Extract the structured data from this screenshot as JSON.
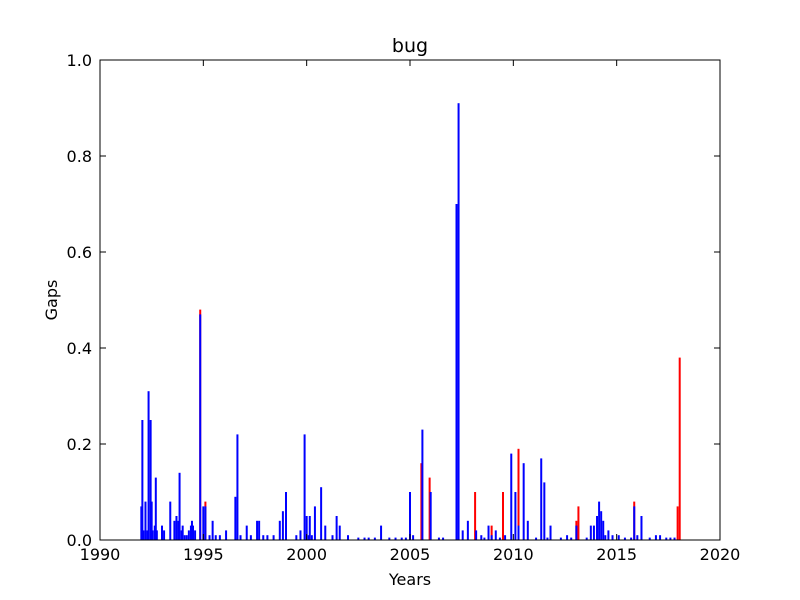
{
  "chart_data": {
    "type": "bar",
    "title": "bug",
    "xlabel": "Years",
    "ylabel": "Gaps",
    "xlim": [
      1990,
      2020
    ],
    "ylim": [
      0.0,
      1.0
    ],
    "xticks": [
      "1990",
      "1995",
      "2000",
      "2005",
      "2010",
      "2015",
      "2020"
    ],
    "yticks": [
      "0.0",
      "0.2",
      "0.4",
      "0.6",
      "0.8",
      "1.0"
    ],
    "grid": false,
    "legend": "none",
    "series": [
      {
        "color": "#ff0000",
        "x": [
          1994.85,
          1995.1,
          2005.55,
          2005.95,
          2008.15,
          2008.95,
          2009.5,
          2010.25,
          2013.05,
          2013.15,
          2015.85,
          2017.95,
          2018.05
        ],
        "values": [
          0.48,
          0.08,
          0.16,
          0.13,
          0.1,
          0.03,
          0.1,
          0.19,
          0.04,
          0.07,
          0.08,
          0.07,
          0.38
        ]
      },
      {
        "color": "#0000ff",
        "x": [
          1992.0,
          1992.05,
          1992.1,
          1992.2,
          1992.3,
          1992.35,
          1992.45,
          1992.5,
          1992.55,
          1992.65,
          1992.7,
          1992.75,
          1993.0,
          1993.1,
          1993.4,
          1993.6,
          1993.7,
          1993.8,
          1993.85,
          1993.95,
          1994.0,
          1994.1,
          1994.2,
          1994.3,
          1994.4,
          1994.45,
          1994.5,
          1994.6,
          1994.85,
          1995.0,
          1995.1,
          1995.3,
          1995.45,
          1995.6,
          1995.8,
          1996.1,
          1996.55,
          1996.65,
          1996.8,
          1997.1,
          1997.3,
          1997.6,
          1997.7,
          1997.9,
          1998.1,
          1998.4,
          1998.7,
          1998.85,
          1999.0,
          1999.5,
          1999.7,
          1999.9,
          2000.0,
          2000.1,
          2000.15,
          2000.25,
          2000.4,
          2000.7,
          2000.9,
          2001.25,
          2001.45,
          2001.6,
          2002.0,
          2002.5,
          2002.8,
          2003.0,
          2003.3,
          2003.6,
          2004.0,
          2004.3,
          2004.6,
          2004.8,
          2005.0,
          2005.15,
          2005.6,
          2006.0,
          2006.4,
          2006.6,
          2007.25,
          2007.35,
          2007.55,
          2007.8,
          2008.2,
          2008.45,
          2008.6,
          2008.8,
          2008.95,
          2009.15,
          2009.35,
          2009.6,
          2009.9,
          2010.1,
          2010.25,
          2010.5,
          2010.7,
          2011.1,
          2011.35,
          2011.5,
          2011.65,
          2011.8,
          2012.3,
          2012.6,
          2012.8,
          2013.05,
          2013.55,
          2013.75,
          2013.9,
          2014.05,
          2014.15,
          2014.25,
          2014.35,
          2014.45,
          2014.6,
          2014.8,
          2015.1,
          2015.4,
          2015.7,
          2015.85,
          2016.0,
          2016.2,
          2016.6,
          2016.9,
          2017.1,
          2017.4,
          2017.6,
          2017.8
        ],
        "values": [
          0.07,
          0.25,
          0.02,
          0.08,
          0.02,
          0.31,
          0.25,
          0.08,
          0.02,
          0.03,
          0.13,
          0.02,
          0.03,
          0.02,
          0.08,
          0.04,
          0.05,
          0.04,
          0.14,
          0.02,
          0.03,
          0.01,
          0.01,
          0.02,
          0.03,
          0.04,
          0.03,
          0.02,
          0.47,
          0.07,
          0.07,
          0.01,
          0.04,
          0.01,
          0.01,
          0.02,
          0.09,
          0.22,
          0.01,
          0.03,
          0.01,
          0.04,
          0.04,
          0.01,
          0.01,
          0.01,
          0.04,
          0.06,
          0.1,
          0.01,
          0.02,
          0.22,
          0.05,
          0.01,
          0.05,
          0.01,
          0.07,
          0.11,
          0.03,
          0.01,
          0.05,
          0.03,
          0.01,
          0.005,
          0.005,
          0.005,
          0.005,
          0.03,
          0.005,
          0.005,
          0.005,
          0.005,
          0.1,
          0.01,
          0.23,
          0.1,
          0.005,
          0.005,
          0.7,
          0.91,
          0.02,
          0.04,
          0.02,
          0.01,
          0.005,
          0.03,
          0.01,
          0.02,
          0.005,
          0.01,
          0.18,
          0.1,
          0.03,
          0.16,
          0.04,
          0.005,
          0.17,
          0.12,
          0.005,
          0.03,
          0.005,
          0.01,
          0.005,
          0.03,
          0.005,
          0.03,
          0.03,
          0.05,
          0.08,
          0.06,
          0.04,
          0.01,
          0.02,
          0.01,
          0.01,
          0.005,
          0.005,
          0.07,
          0.01,
          0.05,
          0.005,
          0.01,
          0.01,
          0.005,
          0.005,
          0.005
        ]
      }
    ]
  }
}
